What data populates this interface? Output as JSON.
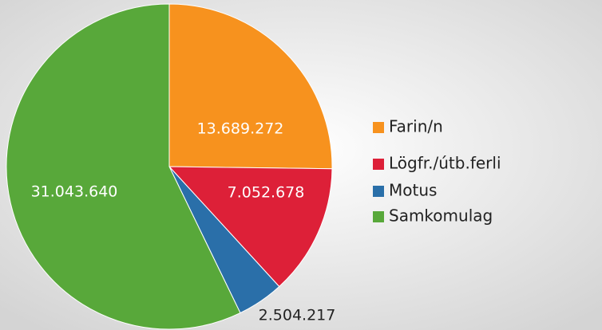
{
  "chart_data": {
    "type": "pie",
    "categories": [
      "Farin/n",
      "Lögfr./útb.ferli",
      "Motus",
      "Samkomulag"
    ],
    "values": [
      13689272,
      7052678,
      2504217,
      31043640
    ],
    "value_labels": [
      "13.689.272",
      "7.052.678",
      "2.504.217",
      "31.043.640"
    ],
    "colors": [
      "#f7921e",
      "#dd2038",
      "#2a6fa9",
      "#58a83a"
    ],
    "legend": "right"
  }
}
